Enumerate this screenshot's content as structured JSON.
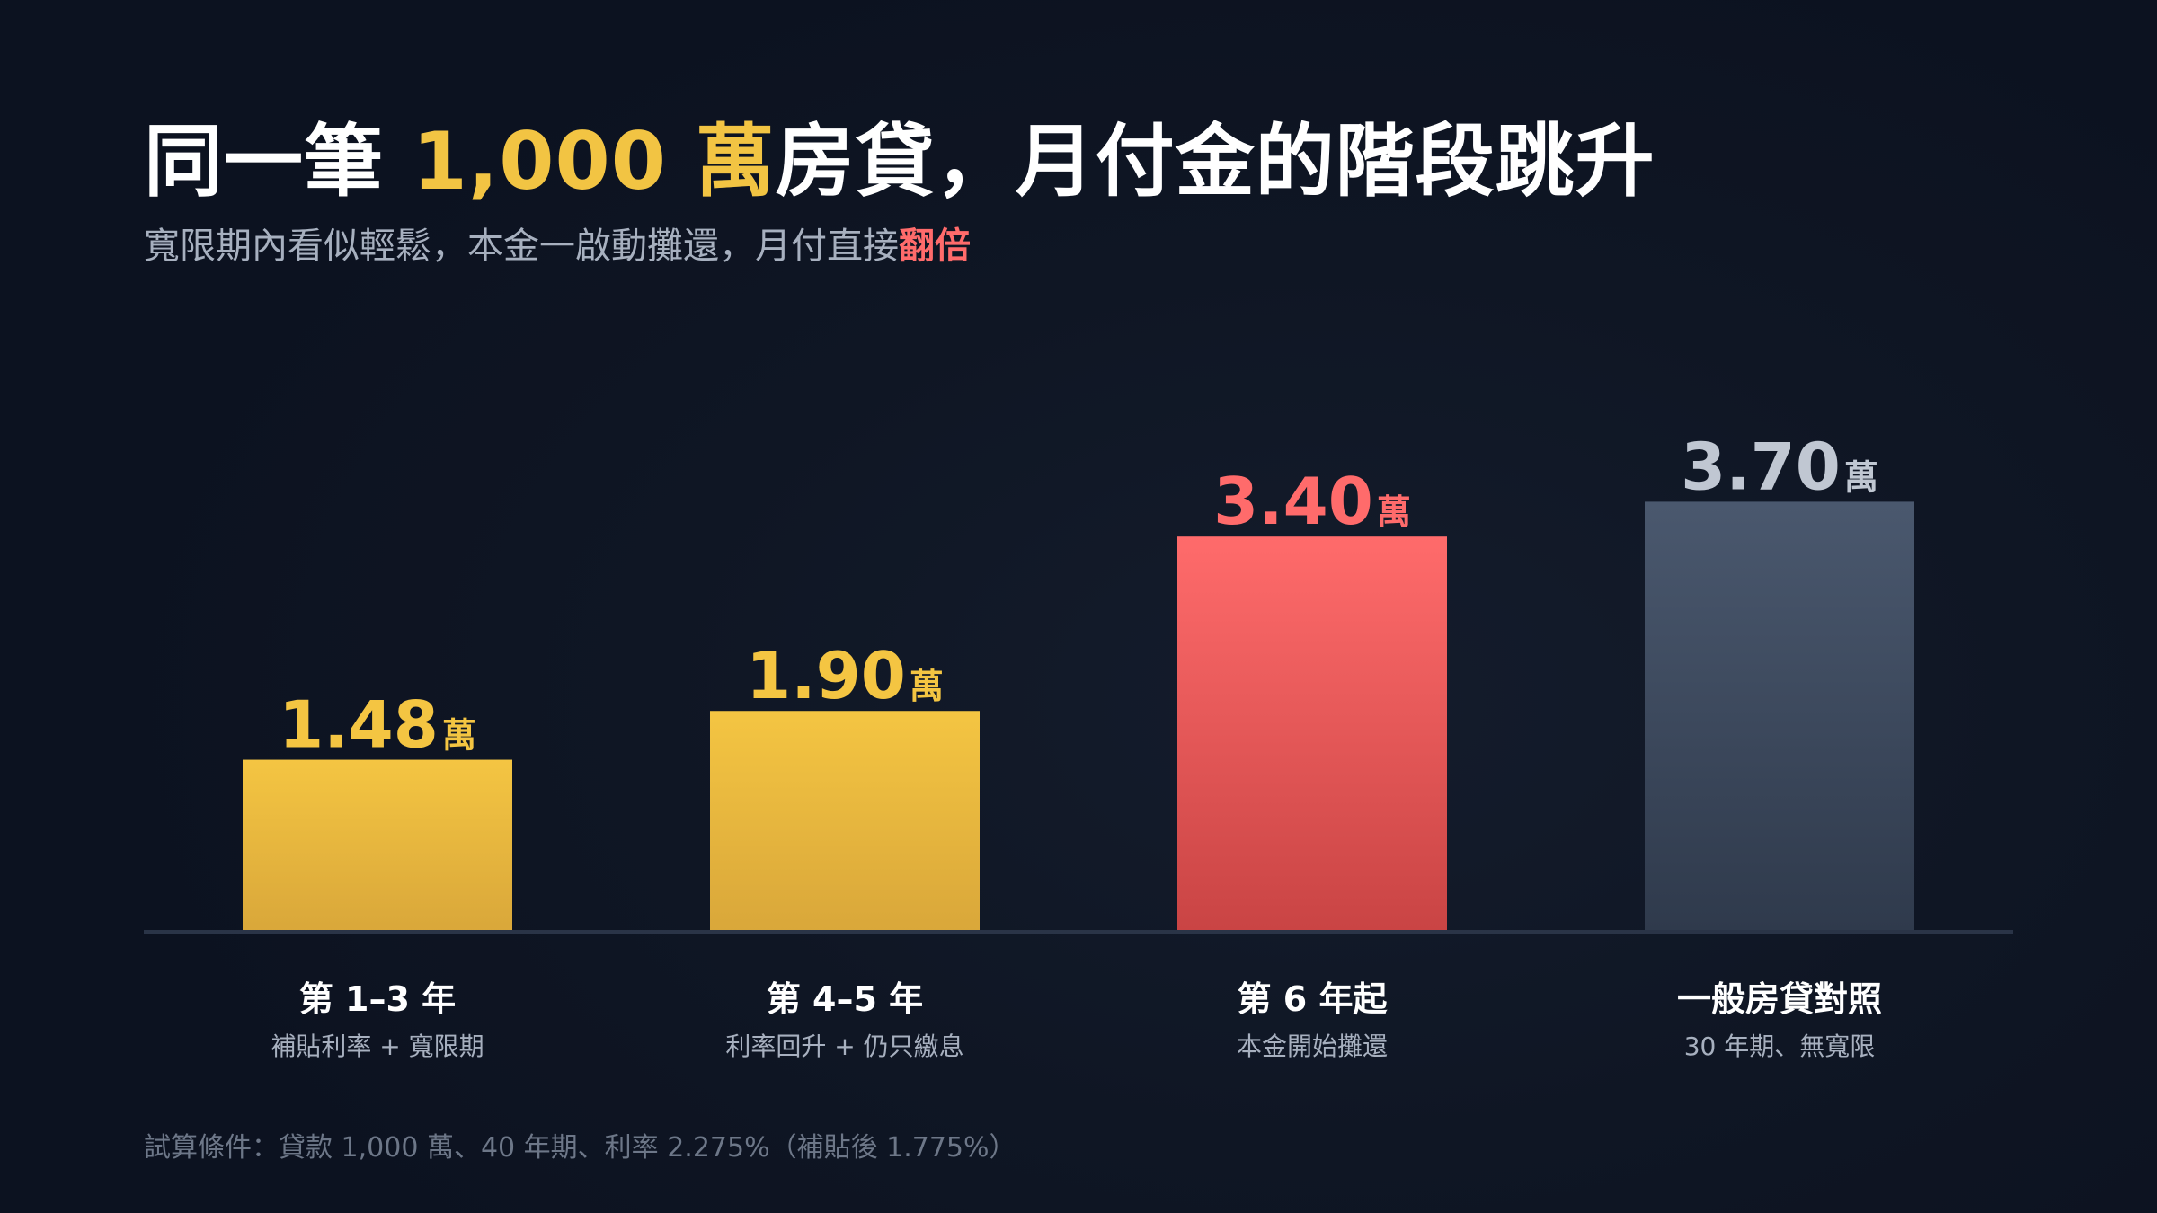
{
  "title": {
    "pre": "同一筆 ",
    "highlight": "1,000 萬",
    "post": "房貸，月付金的階段跳升"
  },
  "subtitle": {
    "pre": "寬限期內看似輕鬆，本金一啟動攤還，月付直接",
    "highlight": "翻倍"
  },
  "chart_data": {
    "type": "bar",
    "unit": "萬",
    "categories": [
      "第 1–3 年",
      "第 4–5 年",
      "第 6 年起",
      "一般房貸對照"
    ],
    "sublabels": [
      "補貼利率 + 寬限期",
      "利率回升 + 仍只繳息",
      "本金開始攤還",
      "30 年期、無寬限"
    ],
    "values": [
      1.48,
      1.9,
      3.4,
      3.7
    ],
    "value_labels": [
      "1.48",
      "1.90",
      "3.40",
      "3.70"
    ],
    "ylim": [
      0,
      4.02
    ],
    "grid": false,
    "colors": {
      "bars": [
        [
          "#f4c542",
          "#d9a73a"
        ],
        [
          "#f4c542",
          "#d9a73a"
        ],
        [
          "#ff6b6b",
          "#c94444"
        ],
        [
          "#4a586e",
          "#2f3a4c"
        ]
      ],
      "labels": [
        "#f4c542",
        "#f4c542",
        "#ff6b6b",
        "#c0c7d2"
      ]
    },
    "xlabel": "",
    "ylabel": ""
  },
  "footnote": "試算條件：貸款 1,000 萬、40 年期、利率 2.275%（補貼後 1.775%）"
}
